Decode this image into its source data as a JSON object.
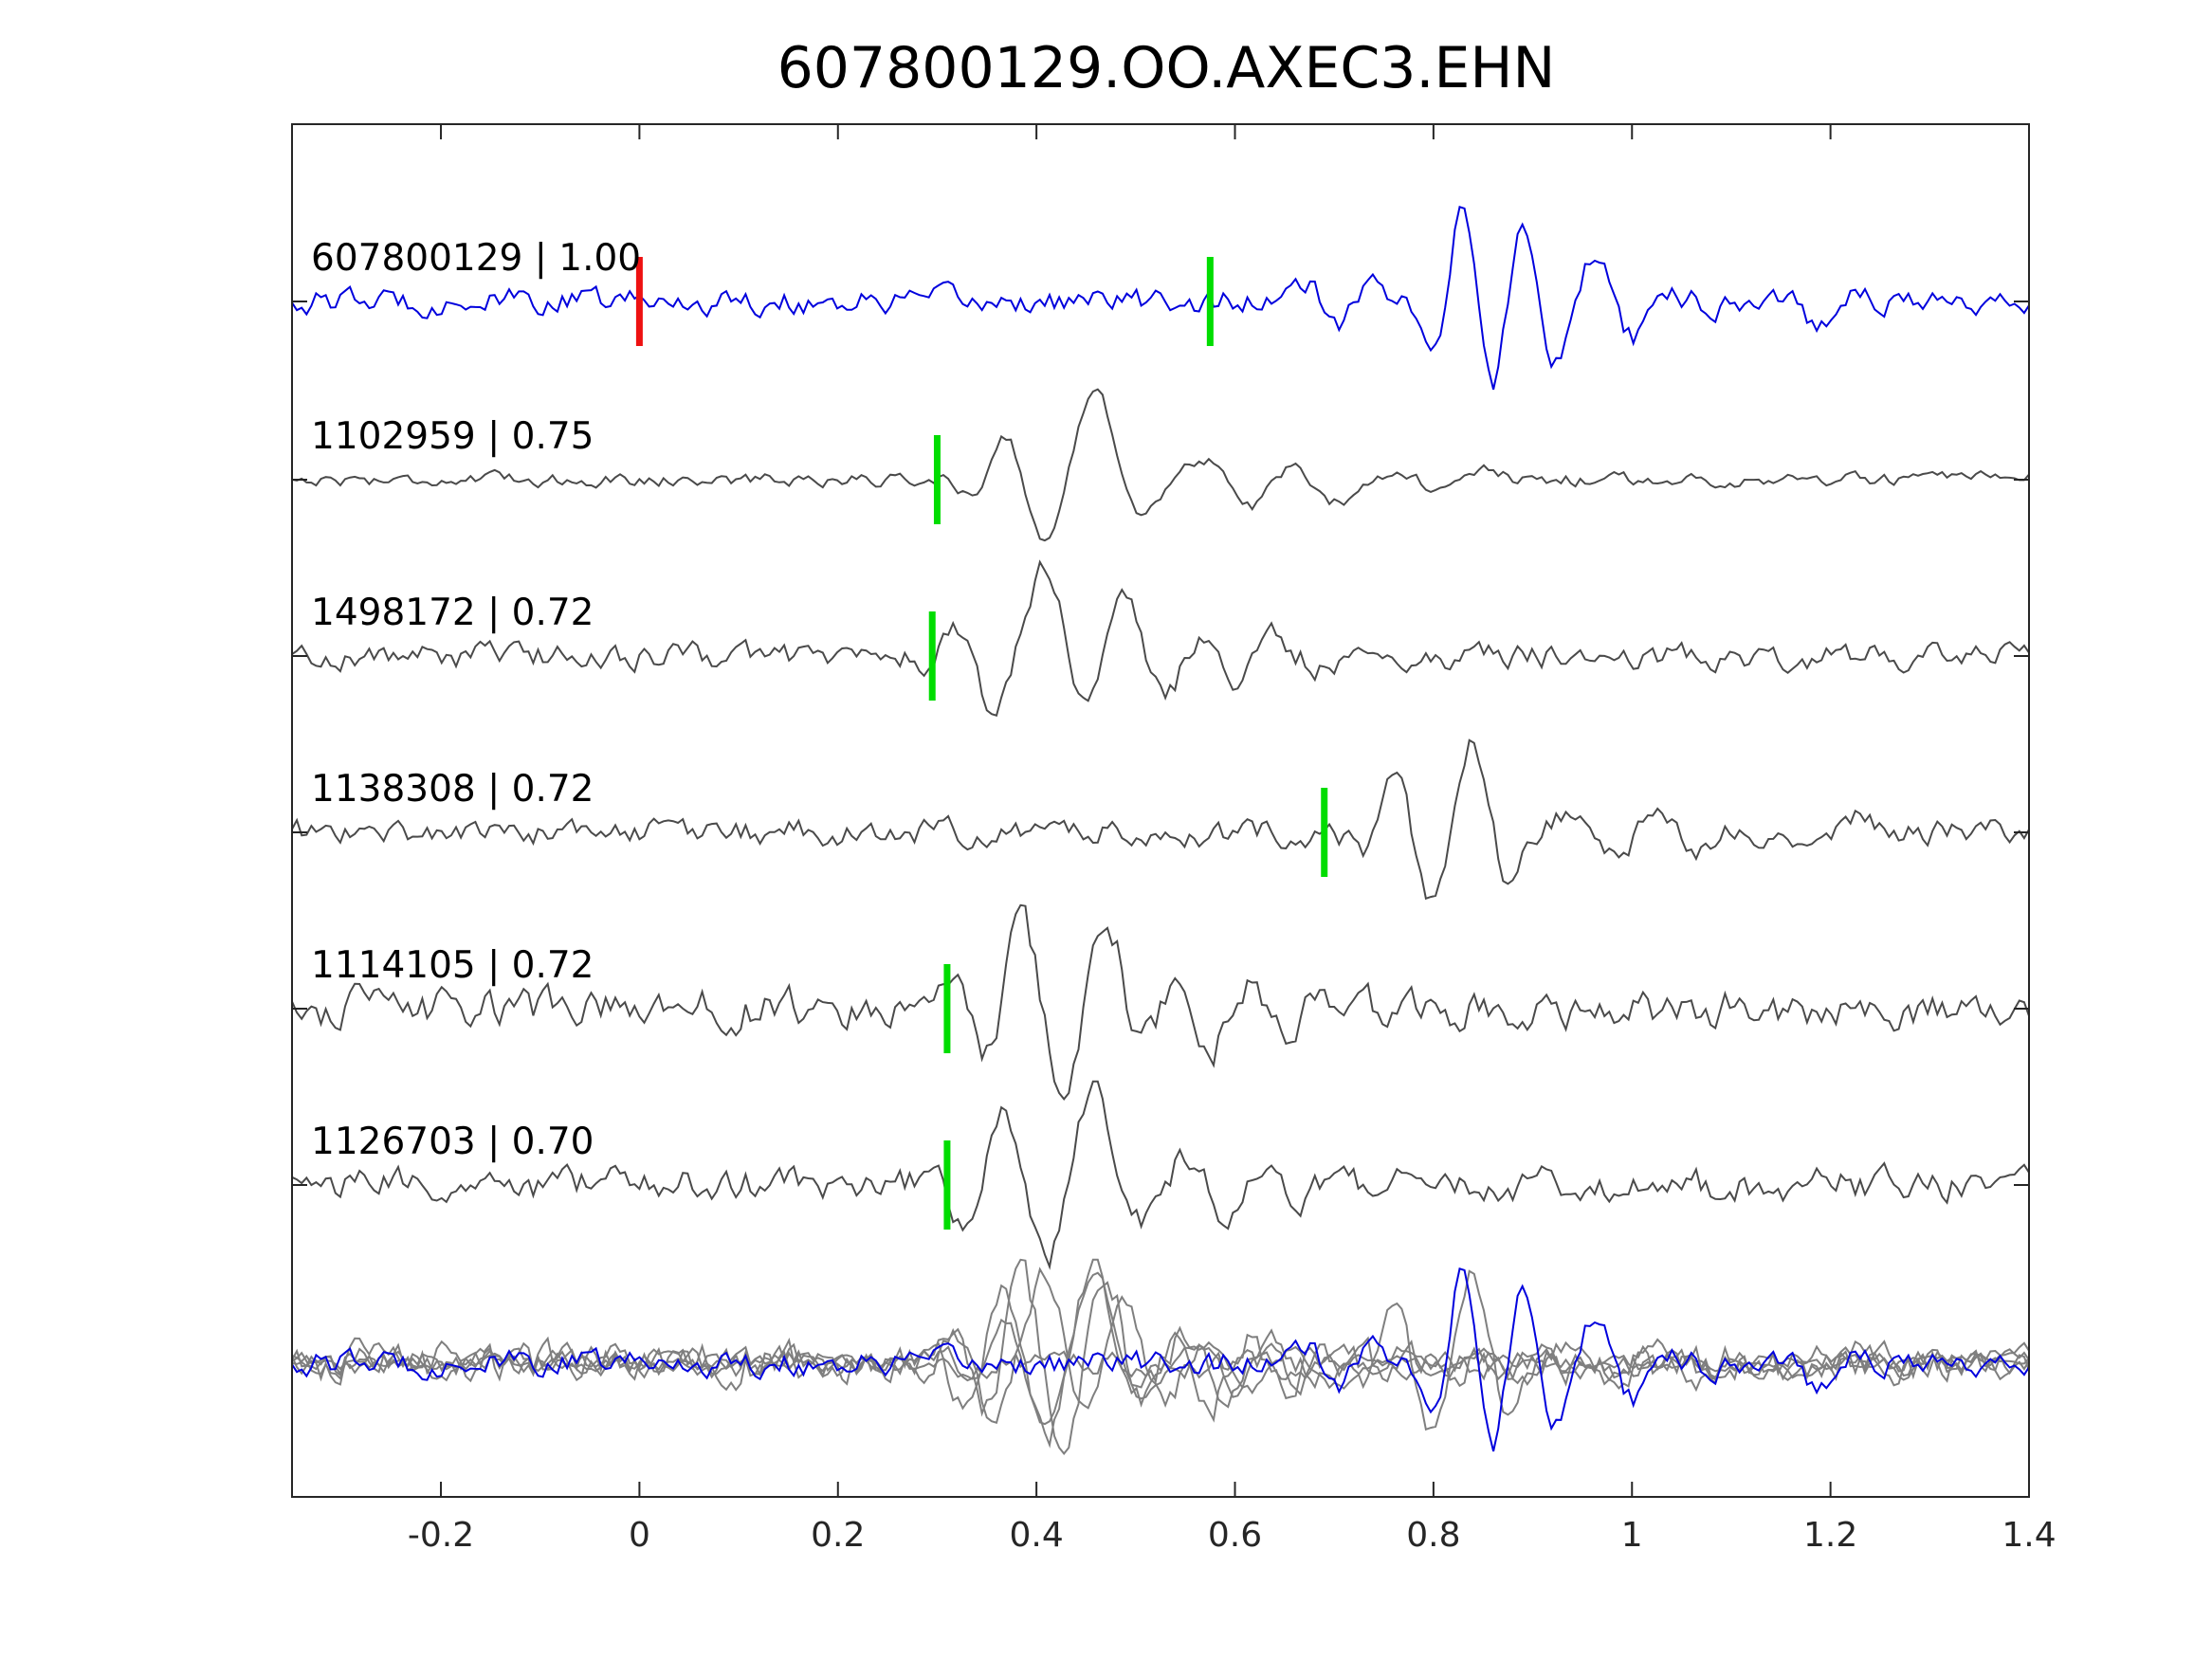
{
  "chart_data": {
    "type": "line",
    "title": "607800129.OO.AXEC3.EHN",
    "xlabel": "",
    "ylabel": "",
    "xlim": [
      -0.35,
      1.4
    ],
    "xticks": [
      -0.2,
      0,
      0.2,
      0.4,
      0.6,
      0.8,
      1,
      1.2,
      1.4
    ],
    "xtick_labels": [
      "-0.2",
      "0",
      "0.2",
      "0.4",
      "0.6",
      "0.8",
      "1",
      "1.2",
      "1.4"
    ],
    "grid": false,
    "colors": {
      "target": "#0000dd",
      "template": "#4a4a4a",
      "overlay": "#7f7f7f",
      "origin_marker": "#ee1111",
      "pick_marker": "#00dd00",
      "axes": "#262626"
    },
    "traces": [
      {
        "label": "607800129 | 1.00",
        "role": "target",
        "pick_time": 0.575,
        "origin_time": 0.0,
        "noise": 0.12,
        "wavelets": [
          [
            0.83,
            0.95,
            15
          ],
          [
            0.9,
            0.7,
            14
          ],
          [
            0.99,
            0.45,
            12
          ],
          [
            0.7,
            0.3,
            14
          ],
          [
            1.2,
            0.25,
            11
          ]
        ]
      },
      {
        "label": "1102959 | 0.75",
        "role": "template",
        "pick_time": 0.3,
        "noise": 0.06,
        "wavelets": [
          [
            0.46,
            1.0,
            9
          ],
          [
            0.38,
            0.5,
            12
          ],
          [
            0.6,
            0.35,
            9
          ],
          [
            0.7,
            0.25,
            8
          ],
          [
            0.82,
            0.15,
            10
          ]
        ]
      },
      {
        "label": "1498172 | 0.72",
        "role": "template",
        "pick_time": 0.295,
        "noise": 0.12,
        "wavelets": [
          [
            0.41,
            1.0,
            9
          ],
          [
            0.5,
            0.65,
            10
          ],
          [
            0.34,
            0.35,
            14
          ],
          [
            0.6,
            0.3,
            12
          ],
          [
            0.7,
            0.15,
            12
          ]
        ]
      },
      {
        "label": "1138308 | 0.72",
        "role": "template",
        "pick_time": 0.69,
        "noise": 0.12,
        "wavelets": [
          [
            0.84,
            1.0,
            12
          ],
          [
            0.77,
            0.5,
            14
          ],
          [
            0.97,
            0.35,
            10
          ],
          [
            1.06,
            0.25,
            11
          ],
          [
            1.2,
            0.2,
            10
          ]
        ]
      },
      {
        "label": "1114105 | 0.72",
        "role": "template",
        "pick_time": 0.31,
        "noise": 0.18,
        "wavelets": [
          [
            0.47,
            1.0,
            10
          ],
          [
            0.4,
            0.7,
            11
          ],
          [
            0.56,
            0.5,
            10
          ],
          [
            0.65,
            0.35,
            11
          ],
          [
            0.36,
            0.3,
            14
          ]
        ]
      },
      {
        "label": "1126703 | 0.70",
        "role": "template",
        "pick_time": 0.31,
        "noise": 0.15,
        "wavelets": [
          [
            0.46,
            1.0,
            10
          ],
          [
            0.38,
            0.7,
            12
          ],
          [
            0.58,
            0.4,
            10
          ],
          [
            0.66,
            0.3,
            11
          ],
          [
            0.33,
            0.3,
            14
          ]
        ]
      }
    ],
    "overlay": {
      "label": "",
      "description_of_content": "all traces superimposed, target in blue"
    }
  }
}
